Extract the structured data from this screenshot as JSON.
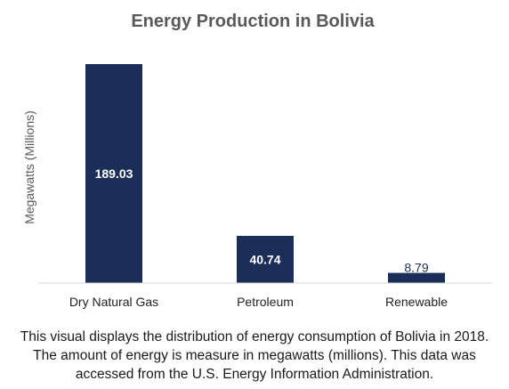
{
  "chart_data": {
    "type": "bar",
    "title": "Energy Production in Bolivia",
    "ylabel": "Megawatts (Millions)",
    "xlabel": "",
    "categories": [
      "Dry Natural Gas",
      "Petroleum",
      "Renewable"
    ],
    "values": [
      189.03,
      40.74,
      8.79
    ],
    "data_labels": [
      "189.03",
      "40.74",
      "8.79"
    ],
    "ylim": [
      0,
      200
    ],
    "grid": false,
    "legend": "none",
    "bar_color": "#1a2e57"
  },
  "caption": "This visual displays the distribution of energy consumption of Bolivia in 2018. The amount of energy is measure in megawatts (millions). This data was accessed from the U.S. Energy Information Administration."
}
